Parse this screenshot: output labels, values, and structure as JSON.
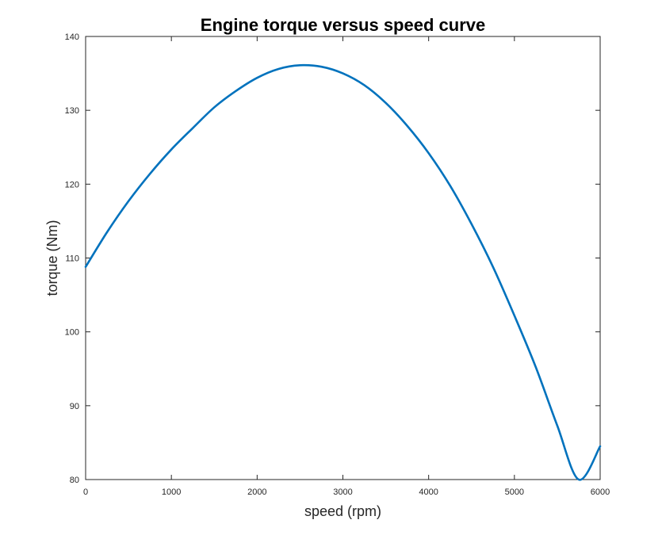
{
  "chart_data": {
    "type": "line",
    "title": "Engine torque versus speed curve",
    "xlabel": "speed (rpm)",
    "ylabel": "torque (Nm)",
    "xlim": [
      0,
      6000
    ],
    "ylim": [
      80,
      140
    ],
    "xticks": [
      0,
      1000,
      2000,
      3000,
      4000,
      5000,
      6000
    ],
    "yticks": [
      80,
      90,
      100,
      110,
      120,
      130,
      140
    ],
    "xtick_labels": [
      "0",
      "1000",
      "2000",
      "3000",
      "4000",
      "5000",
      "6000"
    ],
    "ytick_labels": [
      "80",
      "90",
      "100",
      "110",
      "120",
      "130",
      "140"
    ],
    "grid": false,
    "series": [
      {
        "name": "torque",
        "color": "#0072bd",
        "x": [
          0,
          250,
          500,
          750,
          1000,
          1250,
          1500,
          1750,
          2000,
          2250,
          2500,
          2750,
          3000,
          3250,
          3500,
          3750,
          4000,
          4250,
          4500,
          4750,
          5000,
          5250,
          5500,
          5750,
          6000
        ],
        "values": [
          108.8,
          113.5,
          117.7,
          121.4,
          124.7,
          127.6,
          130.4,
          132.6,
          134.4,
          135.6,
          136.1,
          135.9,
          135.0,
          133.4,
          131.0,
          127.9,
          124.2,
          119.8,
          114.6,
          108.8,
          102.2,
          95.2,
          87.3,
          80.0,
          84.5
        ]
      }
    ]
  }
}
